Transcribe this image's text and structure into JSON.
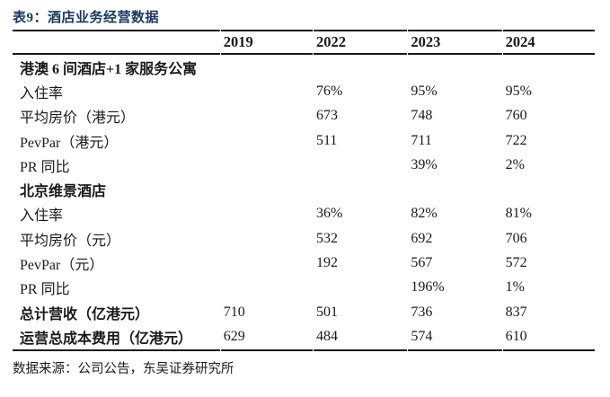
{
  "title": "表9：酒店业务经营数据",
  "table": {
    "columns": [
      "",
      "2019",
      "2022",
      "2023",
      "2024"
    ],
    "rows": [
      {
        "label": "港澳 6 间酒店+1 家服务公寓",
        "bold": true,
        "values": [
          "",
          "",
          "",
          ""
        ]
      },
      {
        "label": "入住率",
        "bold": false,
        "values": [
          "",
          "76%",
          "95%",
          "95%"
        ]
      },
      {
        "label": "平均房价（港元）",
        "bold": false,
        "values": [
          "",
          "673",
          "748",
          "760"
        ]
      },
      {
        "label": "PevPar（港元）",
        "bold": false,
        "values": [
          "",
          "511",
          "711",
          "722"
        ]
      },
      {
        "label": "PR 同比",
        "bold": false,
        "values": [
          "",
          "",
          "39%",
          "2%"
        ]
      },
      {
        "label": "北京维景酒店",
        "bold": true,
        "values": [
          "",
          "",
          "",
          ""
        ]
      },
      {
        "label": "入住率",
        "bold": false,
        "values": [
          "",
          "36%",
          "82%",
          "81%"
        ]
      },
      {
        "label": "平均房价（元）",
        "bold": false,
        "values": [
          "",
          "532",
          "692",
          "706"
        ]
      },
      {
        "label": "PevPar（元）",
        "bold": false,
        "values": [
          "",
          "192",
          "567",
          "572"
        ]
      },
      {
        "label": "PR 同比",
        "bold": false,
        "values": [
          "",
          "",
          "196%",
          "1%"
        ]
      },
      {
        "label": "总计营收（亿港元）",
        "bold": true,
        "values": [
          "710",
          "501",
          "736",
          "837"
        ]
      },
      {
        "label": "运营总成本费用（亿港元）",
        "bold": true,
        "values": [
          "629",
          "484",
          "574",
          "610"
        ]
      }
    ]
  },
  "footer": {
    "source": "数据来源：公司公告，东吴证券研究所"
  },
  "colors": {
    "title": "#17375e",
    "text": "#1a1a1a",
    "rule": "#1a1a1a",
    "background": "#ffffff"
  }
}
